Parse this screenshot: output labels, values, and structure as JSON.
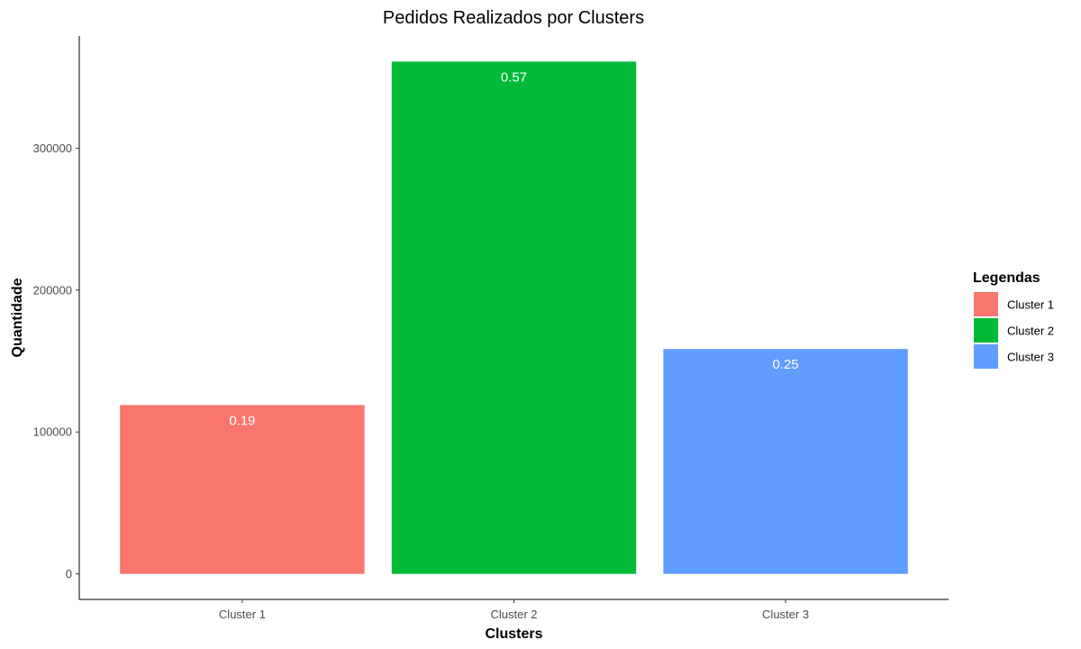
{
  "chart_data": {
    "type": "bar",
    "title": "Pedidos Realizados por Clusters",
    "xlabel": "Clusters",
    "ylabel": "Quantidade",
    "categories": [
      "Cluster 1",
      "Cluster 2",
      "Cluster 3"
    ],
    "values": [
      119000,
      361000,
      158500
    ],
    "data_labels": [
      "0.19",
      "0.57",
      "0.25"
    ],
    "colors": [
      "#F8766D",
      "#00BA38",
      "#619CFF"
    ],
    "ylim": [
      -18000,
      379000
    ],
    "y_ticks": [
      0,
      100000,
      200000,
      300000
    ],
    "y_tick_labels": [
      "0",
      "100000",
      "200000",
      "300000"
    ],
    "grid": false,
    "legend": {
      "title": "Legendas",
      "placement": "right",
      "items": [
        "Cluster 1",
        "Cluster 2",
        "Cluster 3"
      ]
    }
  }
}
